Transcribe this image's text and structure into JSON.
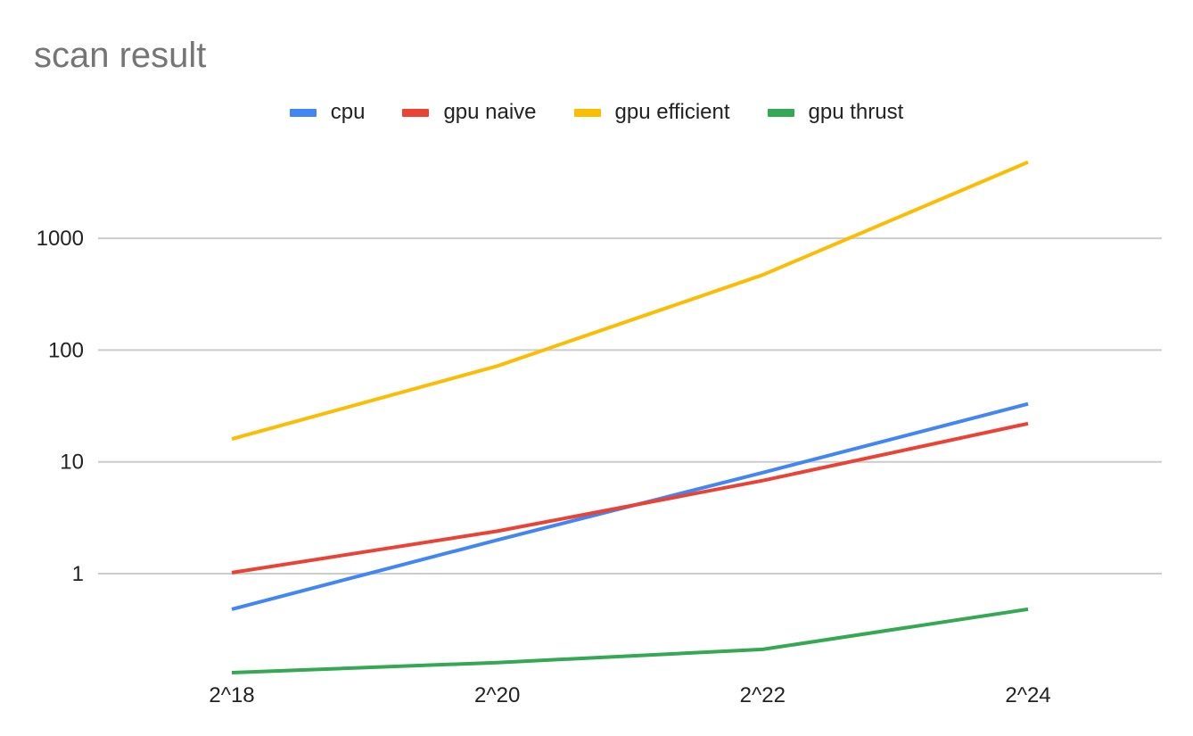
{
  "chart_data": {
    "type": "line",
    "title": "scan result",
    "xlabel": "",
    "ylabel": "",
    "y_scale": "log",
    "ylim": [
      0.1,
      10000
    ],
    "y_ticks": [
      "1000",
      "100",
      "10",
      "1"
    ],
    "categories": [
      "2^18",
      "2^20",
      "2^22",
      "2^24"
    ],
    "grid": true,
    "legend_position": "top",
    "series": [
      {
        "name": "cpu",
        "color": "#4285f4",
        "values": [
          0.48,
          2.0,
          8.0,
          33.0
        ]
      },
      {
        "name": "gpu naive",
        "color": "#ea4335",
        "values": [
          1.02,
          2.4,
          6.8,
          22.0
        ]
      },
      {
        "name": "gpu efficient",
        "color": "#fbbc04",
        "values": [
          16.0,
          72.0,
          470.0,
          4800.0
        ]
      },
      {
        "name": "gpu thrust",
        "color": "#34a853",
        "values": [
          0.13,
          0.16,
          0.21,
          0.48
        ]
      }
    ]
  }
}
